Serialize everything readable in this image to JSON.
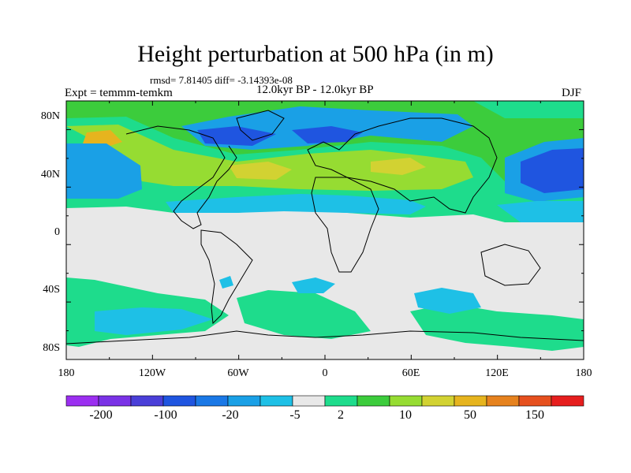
{
  "title": "Height perturbation at 500 hPa (in m)",
  "stats": "rmsd= 7.81405 diff= -3.14393e-08",
  "expt": "Expt = temmm-temkm",
  "period": "12.0kyr BP - 12.0kyr BP",
  "season": "DJF",
  "axes": {
    "y_ticks": [
      "80N",
      "40N",
      "0",
      "40S",
      "80S"
    ],
    "x_ticks": [
      "180",
      "120W",
      "60W",
      "0",
      "60E",
      "120E",
      "180"
    ]
  },
  "colorbar": {
    "labels": [
      "-200",
      "-100",
      "-20",
      "-5",
      "2",
      "10",
      "50",
      "150"
    ],
    "colors": [
      "#9b2ff0",
      "#7a32e6",
      "#4a3fd8",
      "#1f55e0",
      "#1a78e6",
      "#1aa0e6",
      "#1ec0e6",
      "#e8e8e8",
      "#1edc8c",
      "#3ccc3c",
      "#96dc32",
      "#d2d232",
      "#e6b41e",
      "#e6821e",
      "#e6501e",
      "#e61e1e"
    ]
  },
  "map_colors": {
    "neutral": "#e8e8e8",
    "cyan": "#1ec0e6",
    "sky": "#1aa0e6",
    "blue": "#1f55e0",
    "teal": "#1edc8c",
    "green": "#3ccc3c",
    "lime": "#96dc32",
    "olive": "#d2d232",
    "orange": "#e6b41e"
  }
}
